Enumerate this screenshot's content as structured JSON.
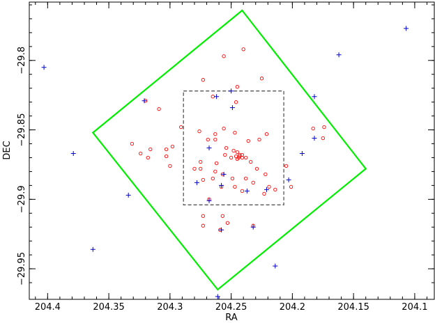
{
  "chart_data": {
    "type": "scatter",
    "title": "",
    "xlabel": "RA",
    "ylabel": "DEC",
    "xlim": [
      204.415,
      204.084
    ],
    "ylim": [
      -29.972,
      -29.758
    ],
    "x_inverted": true,
    "grid": false,
    "x_ticks": [
      204.4,
      204.35,
      204.3,
      204.25,
      204.2,
      204.15,
      204.1
    ],
    "x_tick_labels": [
      "204.4",
      "204.35",
      "204.3",
      "204.25",
      "204.2",
      "204.15",
      "204.1"
    ],
    "y_ticks": [
      -29.8,
      -29.85,
      -29.9,
      -29.95
    ],
    "y_tick_labels": [
      "−29.8",
      "−29.85",
      "−29.9",
      "−29.95"
    ],
    "colors": {
      "circles": "#ff0000",
      "plus": "#0000cc",
      "green_box": "#00ee00",
      "dashed_box": "#555555"
    },
    "green_polygon": [
      [
        204.241,
        -29.764
      ],
      [
        204.14,
        -29.878
      ],
      [
        204.261,
        -29.965
      ],
      [
        204.363,
        -29.852
      ]
    ],
    "dashed_box": [
      [
        204.289,
        -29.822
      ],
      [
        204.207,
        -29.822
      ],
      [
        204.207,
        -29.904
      ],
      [
        204.289,
        -29.904
      ]
    ],
    "series": [
      {
        "marker": "circle",
        "points": [
          [
            204.24,
            -29.792
          ],
          [
            204.256,
            -29.797
          ],
          [
            204.225,
            -29.813
          ],
          [
            204.273,
            -29.814
          ],
          [
            204.245,
            -29.819
          ],
          [
            204.265,
            -29.826
          ],
          [
            204.246,
            -29.83
          ],
          [
            204.32,
            -29.829
          ],
          [
            204.309,
            -29.835
          ],
          [
            204.291,
            -29.848
          ],
          [
            204.263,
            -29.853
          ],
          [
            204.247,
            -29.852
          ],
          [
            204.276,
            -29.851
          ],
          [
            204.221,
            -29.853
          ],
          [
            204.256,
            -29.849
          ],
          [
            204.263,
            -29.857
          ],
          [
            204.227,
            -29.857
          ],
          [
            204.183,
            -29.849
          ],
          [
            204.175,
            -29.856
          ],
          [
            204.174,
            -29.848
          ],
          [
            204.254,
            -29.863
          ],
          [
            204.236,
            -29.858
          ],
          [
            204.269,
            -29.857
          ],
          [
            204.331,
            -29.86
          ],
          [
            204.316,
            -29.864
          ],
          [
            204.303,
            -29.864
          ],
          [
            204.298,
            -29.862
          ],
          [
            204.248,
            -29.865
          ],
          [
            204.243,
            -29.868
          ],
          [
            204.255,
            -29.868
          ],
          [
            204.245,
            -29.866
          ],
          [
            204.241,
            -29.87
          ],
          [
            204.246,
            -29.869
          ],
          [
            204.243,
            -29.869
          ],
          [
            204.25,
            -29.87
          ],
          [
            204.238,
            -29.87
          ],
          [
            204.245,
            -29.871
          ],
          [
            204.241,
            -29.868
          ],
          [
            204.244,
            -29.87
          ],
          [
            204.318,
            -29.87
          ],
          [
            204.303,
            -29.869
          ],
          [
            204.324,
            -29.867
          ],
          [
            204.275,
            -29.873
          ],
          [
            204.262,
            -29.874
          ],
          [
            204.234,
            -29.873
          ],
          [
            204.3,
            -29.876
          ],
          [
            204.263,
            -29.88
          ],
          [
            204.275,
            -29.878
          ],
          [
            204.229,
            -29.878
          ],
          [
            204.205,
            -29.876
          ],
          [
            204.28,
            -29.878
          ],
          [
            204.257,
            -29.882
          ],
          [
            204.222,
            -29.882
          ],
          [
            204.249,
            -29.885
          ],
          [
            204.238,
            -29.885
          ],
          [
            204.273,
            -29.886
          ],
          [
            204.265,
            -29.885
          ],
          [
            204.247,
            -29.891
          ],
          [
            204.232,
            -29.888
          ],
          [
            204.219,
            -29.891
          ],
          [
            204.201,
            -29.891
          ],
          [
            204.258,
            -29.891
          ],
          [
            204.241,
            -29.894
          ],
          [
            204.214,
            -29.893
          ],
          [
            204.273,
            -29.912
          ],
          [
            204.257,
            -29.912
          ],
          [
            204.253,
            -29.917
          ],
          [
            204.273,
            -29.919
          ],
          [
            204.259,
            -29.922
          ],
          [
            204.232,
            -29.919
          ],
          [
            204.223,
            -29.896
          ],
          [
            204.268,
            -29.9
          ]
        ]
      },
      {
        "marker": "plus",
        "points": [
          [
            204.403,
            -29.805
          ],
          [
            204.107,
            -29.777
          ],
          [
            204.162,
            -29.796
          ],
          [
            204.25,
            -29.822
          ],
          [
            204.182,
            -29.826
          ],
          [
            204.321,
            -29.829
          ],
          [
            204.262,
            -29.826
          ],
          [
            204.249,
            -29.834
          ],
          [
            204.182,
            -29.856
          ],
          [
            204.268,
            -29.863
          ],
          [
            204.379,
            -29.867
          ],
          [
            204.192,
            -29.867
          ],
          [
            204.256,
            -29.882
          ],
          [
            204.203,
            -29.886
          ],
          [
            204.278,
            -29.888
          ],
          [
            204.258,
            -29.89
          ],
          [
            204.237,
            -29.894
          ],
          [
            204.221,
            -29.893
          ],
          [
            204.334,
            -29.897
          ],
          [
            204.268,
            -29.901
          ],
          [
            204.232,
            -29.92
          ],
          [
            204.258,
            -29.922
          ],
          [
            204.363,
            -29.936
          ],
          [
            204.214,
            -29.948
          ],
          [
            204.261,
            -29.97
          ]
        ]
      }
    ]
  }
}
